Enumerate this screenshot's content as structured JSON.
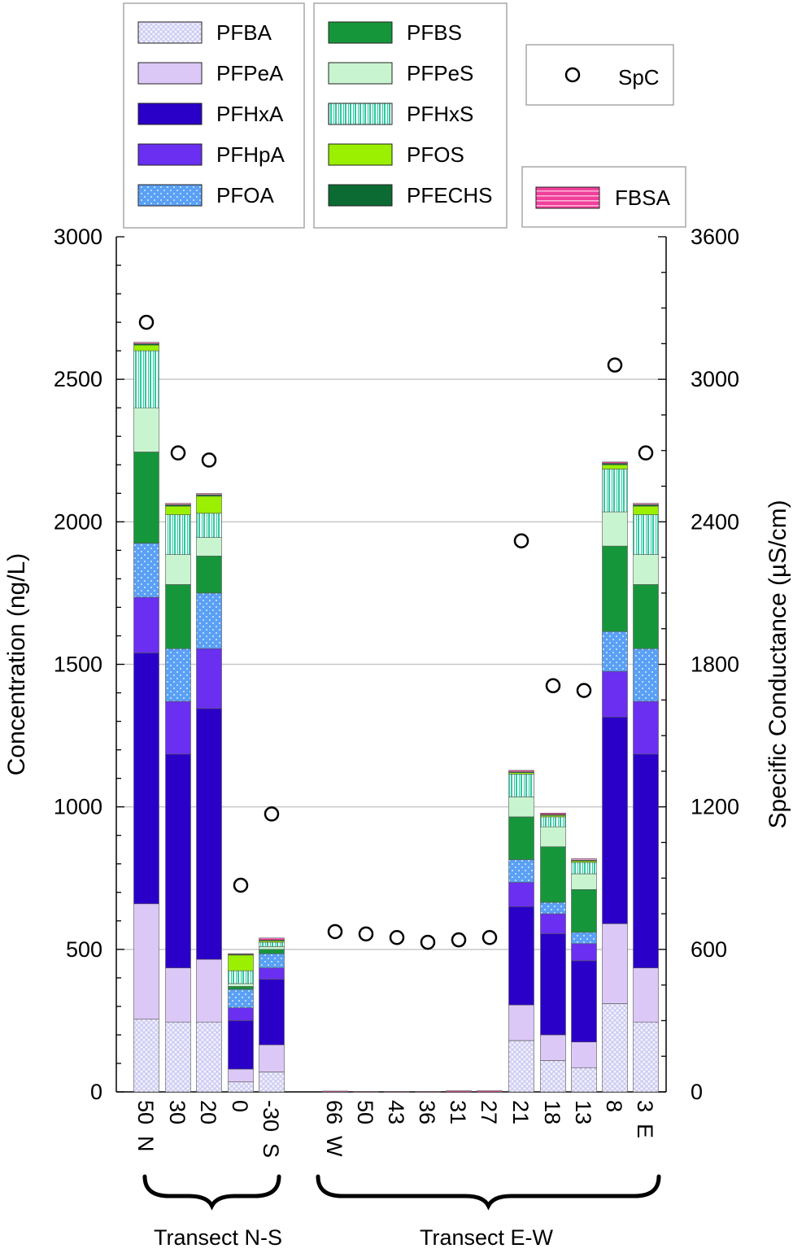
{
  "chart_data": {
    "type": "bar",
    "stacked": true,
    "categories": [
      "50 N",
      "30",
      "20",
      "0",
      "-30 S",
      "66 W",
      "50",
      "43",
      "36",
      "31",
      "27",
      "21",
      "18",
      "13",
      "8",
      "3 E"
    ],
    "x_tick_labels": [
      {
        "main": "50",
        "suffix": "N"
      },
      {
        "main": "30",
        "suffix": ""
      },
      {
        "main": "20",
        "suffix": ""
      },
      {
        "main": "0",
        "suffix": ""
      },
      {
        "main": "-30",
        "suffix": "S"
      },
      {
        "main": "66",
        "suffix": "W"
      },
      {
        "main": "50",
        "suffix": ""
      },
      {
        "main": "43",
        "suffix": ""
      },
      {
        "main": "36",
        "suffix": ""
      },
      {
        "main": "31",
        "suffix": ""
      },
      {
        "main": "27",
        "suffix": ""
      },
      {
        "main": "21",
        "suffix": ""
      },
      {
        "main": "18",
        "suffix": ""
      },
      {
        "main": "13",
        "suffix": ""
      },
      {
        "main": "8",
        "suffix": ""
      },
      {
        "main": "3",
        "suffix": "E"
      }
    ],
    "ylabel": "Concentration (ng/L)",
    "ylim": [
      0,
      3000
    ],
    "yticks": [
      0,
      500,
      1000,
      1500,
      2000,
      2500,
      3000
    ],
    "y2label": "Specific Conductance (µS/cm)",
    "y2lim": [
      0,
      3600
    ],
    "y2ticks": [
      0,
      600,
      1200,
      1800,
      2400,
      3000,
      3600
    ],
    "grid": "horizontal major",
    "legend_placement": "top",
    "series": [
      {
        "name": "PFBA",
        "color": "#c9c7f2",
        "pattern": "crosshatch",
        "values": [
          255,
          245,
          245,
          35,
          70,
          0,
          0,
          0,
          0,
          0,
          0,
          180,
          110,
          85,
          310,
          245
        ]
      },
      {
        "name": "PFPeA",
        "color": "#dcc8f6",
        "pattern": "solid",
        "values": [
          405,
          190,
          220,
          45,
          95,
          0,
          0,
          0,
          0,
          0,
          0,
          125,
          90,
          90,
          280,
          190
        ]
      },
      {
        "name": "PFHxA",
        "color": "#2a00c8",
        "pattern": "solid",
        "values": [
          880,
          750,
          880,
          170,
          230,
          0,
          0,
          0,
          0,
          0,
          0,
          345,
          355,
          285,
          725,
          750
        ]
      },
      {
        "name": "PFHpA",
        "color": "#6a2ff0",
        "pattern": "solid",
        "values": [
          195,
          185,
          210,
          45,
          40,
          0,
          0,
          0,
          0,
          0,
          0,
          85,
          70,
          60,
          160,
          185
        ]
      },
      {
        "name": "PFOA",
        "color": "#5aa0f5",
        "pattern": "dots",
        "values": [
          190,
          185,
          195,
          65,
          50,
          0,
          0,
          0,
          0,
          0,
          0,
          80,
          40,
          40,
          140,
          185
        ]
      },
      {
        "name": "PFBS",
        "color": "#16963a",
        "pattern": "solid",
        "values": [
          320,
          225,
          130,
          10,
          15,
          0,
          0,
          0,
          0,
          0,
          0,
          150,
          195,
          150,
          300,
          225
        ]
      },
      {
        "name": "PFPeS",
        "color": "#c8f5d0",
        "pattern": "solid",
        "values": [
          155,
          105,
          65,
          10,
          10,
          0,
          0,
          0,
          0,
          0,
          0,
          70,
          70,
          55,
          120,
          105
        ]
      },
      {
        "name": "PFHxS",
        "color": "#2ec8a0",
        "pattern": "vstripes",
        "values": [
          200,
          140,
          85,
          45,
          15,
          0,
          0,
          0,
          0,
          0,
          0,
          80,
          35,
          40,
          150,
          140
        ]
      },
      {
        "name": "PFOS",
        "color": "#9af000",
        "pattern": "solid",
        "values": [
          20,
          30,
          60,
          55,
          5,
          0,
          0,
          0,
          0,
          0,
          0,
          5,
          5,
          5,
          15,
          30
        ]
      },
      {
        "name": "PFECHS",
        "color": "#0b6b33",
        "pattern": "solid",
        "values": [
          5,
          5,
          5,
          3,
          3,
          0,
          0,
          0,
          0,
          0,
          0,
          3,
          3,
          3,
          5,
          5
        ]
      },
      {
        "name": "FBSA",
        "color": "#f0409b",
        "pattern": "hstripes",
        "values": [
          5,
          5,
          5,
          2,
          7,
          3,
          2,
          2,
          2,
          4,
          4,
          5,
          5,
          5,
          5,
          5
        ]
      }
    ],
    "scatter_series": {
      "name": "SpC",
      "axis": "right",
      "values": [
        3240,
        2690,
        2660,
        870,
        1170,
        675,
        665,
        650,
        630,
        640,
        650,
        2320,
        1710,
        1690,
        3060,
        2690
      ]
    },
    "group_labels": [
      "Transect N-S",
      "Transect E-W"
    ]
  }
}
